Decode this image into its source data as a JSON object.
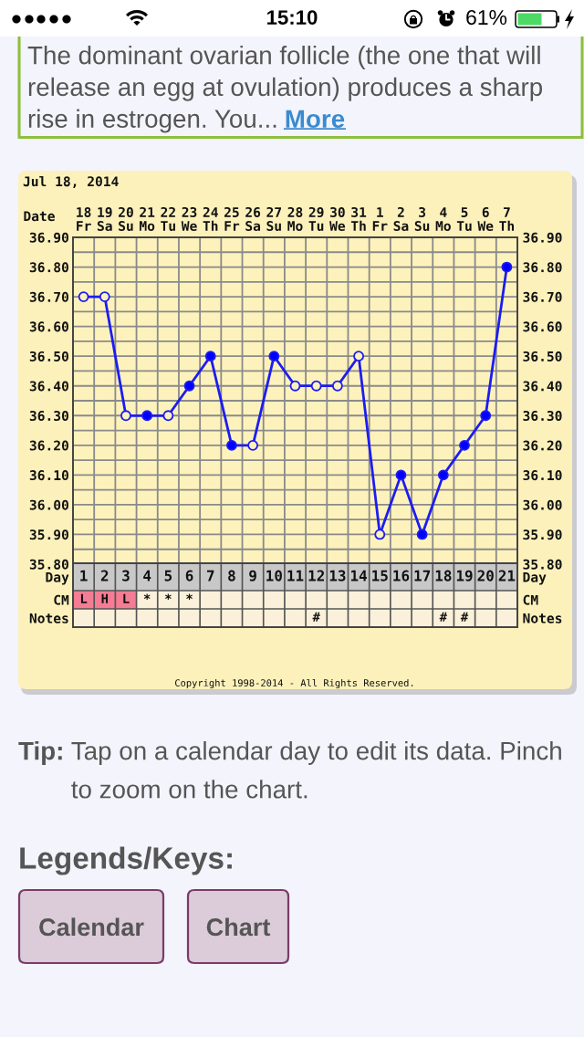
{
  "chart_data": [
    {
      "type": "other",
      "annotations": [
        "15:10",
        "61%",
        "The dominant ovarian follicle (the one that will release an egg at ovulation) produces a sharp",
        "rise in estrogen. You...",
        "More"
      ]
    },
    {
      "type": "line",
      "title": "Jul 18, 2014",
      "xlabel": "Date",
      "categories": [
        "18\nFr",
        "19\nSa",
        "20\nSu",
        "21\nMo",
        "22\nTu",
        "23\nWe",
        "24\nTh",
        "25\nFr",
        "26\nSa",
        "27\nSu",
        "28\nMo",
        "29\nTu",
        "30\nWe",
        "31\nTh",
        "1\nFr",
        "2\nSa",
        "3\nSu",
        "4\nMo",
        "5\nTu",
        "6\nWe",
        "7\nTh"
      ],
      "series": [
        {
          "color": "#1c1cf2",
          "values": [
            36.7,
            36.7,
            36.3,
            36.3,
            36.3,
            36.4,
            36.5,
            36.2,
            36.2,
            36.5,
            36.4,
            36.4,
            36.4,
            36.5,
            35.9,
            36.1,
            35.9,
            36.1,
            36.2,
            36.3,
            36.8
          ],
          "colors": [
            "#fdf2bc",
            "#fdf2bc",
            "#fdf2bc",
            "#0000ff",
            "#fdf2bc",
            "#0000ff",
            "#0000ff",
            "#0000ff",
            "#fdf2bc",
            "#0000ff",
            "#fdf2bc",
            "#fdf2bc",
            "#fdf2bc",
            "#fdf2bc",
            "#fdf2bc",
            "#0000ff",
            "#0000ff",
            "#0000ff",
            "#0000ff",
            "#0000ff",
            "#0000ff"
          ]
        }
      ],
      "ylim": [
        35.8,
        36.9
      ],
      "yticks": [
        {
          "value": 35.8,
          "label": "35.80"
        },
        {
          "value": 35.85,
          "label": null
        },
        {
          "value": 35.9,
          "label": "35.90"
        },
        {
          "value": 35.95,
          "label": null
        },
        {
          "value": 36.0,
          "label": "36.00"
        },
        {
          "value": 36.05,
          "label": null
        },
        {
          "value": 36.1,
          "label": "36.10"
        },
        {
          "value": 36.15,
          "label": null
        },
        {
          "value": 36.2,
          "label": "36.20"
        },
        {
          "value": 36.25,
          "label": null
        },
        {
          "value": 36.3,
          "label": "36.30"
        },
        {
          "value": 36.35,
          "label": null
        },
        {
          "value": 36.4,
          "label": "36.40"
        },
        {
          "value": 36.45,
          "label": null
        },
        {
          "value": 36.5,
          "label": "36.50"
        },
        {
          "value": 36.55,
          "label": null
        },
        {
          "value": 36.6,
          "label": "36.60"
        },
        {
          "value": 36.65,
          "label": null
        },
        {
          "value": 36.7,
          "label": "36.70"
        },
        {
          "value": 36.75,
          "label": null
        },
        {
          "value": 36.8,
          "label": "36.80"
        },
        {
          "value": 36.85,
          "label": null
        },
        {
          "value": 36.9,
          "label": "36.90"
        }
      ],
      "y2lim": [
        35.8,
        36.9
      ],
      "y2ticks": [
        {
          "value": 35.8,
          "label": "35.80"
        },
        {
          "value": 35.85,
          "label": null
        },
        {
          "value": 35.9,
          "label": "35.90"
        },
        {
          "value": 35.95,
          "label": null
        },
        {
          "value": 36.0,
          "label": "36.00"
        },
        {
          "value": 36.05,
          "label": null
        },
        {
          "value": 36.1,
          "label": "36.10"
        },
        {
          "value": 36.15,
          "label": null
        },
        {
          "value": 36.2,
          "label": "36.20"
        },
        {
          "value": 36.25,
          "label": null
        },
        {
          "value": 36.3,
          "label": "36.30"
        },
        {
          "value": 36.35,
          "label": null
        },
        {
          "value": 36.4,
          "label": "36.40"
        },
        {
          "value": 36.45,
          "label": null
        },
        {
          "value": 36.5,
          "label": "36.50"
        },
        {
          "value": 36.55,
          "label": null
        },
        {
          "value": 36.6,
          "label": "36.60"
        },
        {
          "value": 36.65,
          "label": null
        },
        {
          "value": 36.7,
          "label": "36.70"
        },
        {
          "value": 36.75,
          "label": null
        },
        {
          "value": 36.8,
          "label": "36.80"
        },
        {
          "value": 36.85,
          "label": null
        },
        {
          "value": 36.9,
          "label": "36.90"
        }
      ],
      "grid": true,
      "marker": "circle",
      "line_style": "solid"
    },
    {
      "type": "heatmap",
      "categories": [
        "1",
        "2",
        "3",
        "4",
        "5",
        "6",
        "7",
        "8",
        "9",
        "10",
        "11",
        "12",
        "13",
        "14",
        "15",
        "16",
        "17",
        "18",
        "19",
        "20",
        "21"
      ],
      "y_categories": [
        "Day",
        "CM",
        "Notes"
      ],
      "y2_categories": [
        "Day",
        "CM",
        "Notes"
      ],
      "cells": [
        [
          null,
          null,
          null,
          null,
          null,
          null,
          null,
          null,
          null,
          null,
          null,
          null,
          null,
          null,
          null,
          null,
          null,
          null,
          null,
          null,
          null
        ],
        [
          null,
          null,
          null,
          null,
          null,
          null,
          null,
          null,
          null,
          null,
          null,
          null,
          null,
          null,
          null,
          null,
          null,
          null,
          null,
          null,
          null
        ],
        [
          null,
          null,
          null,
          null,
          null,
          null,
          null,
          null,
          null,
          null,
          null,
          null,
          null,
          null,
          null,
          null,
          null,
          null,
          null,
          null,
          null
        ]
      ],
      "cell_labels": [
        [
          null,
          null,
          null,
          null,
          null,
          null,
          null,
          null,
          null,
          null,
          null,
          null,
          null,
          null,
          null,
          null,
          null,
          null,
          null,
          null,
          null
        ],
        [
          "L",
          "H",
          "L",
          "*",
          "*",
          "*",
          null,
          null,
          null,
          null,
          null,
          null,
          null,
          null,
          null,
          null,
          null,
          null,
          null,
          null,
          null
        ],
        [
          null,
          null,
          null,
          null,
          null,
          null,
          null,
          null,
          null,
          null,
          null,
          "#",
          null,
          null,
          null,
          null,
          null,
          "#",
          "#",
          null,
          null
        ]
      ],
      "colors": [
        [
          "#c8c8c8",
          "#c8c8c8",
          "#c8c8c8",
          "#c8c8c8",
          "#c8c8c8",
          "#c8c8c8",
          "#c8c8c8",
          "#c8c8c8",
          "#c8c8c8",
          "#c8c8c8",
          "#c8c8c8",
          "#c8c8c8",
          "#c8c8c8",
          "#c8c8c8",
          "#c8c8c8",
          "#c8c8c8",
          "#c8c8c8",
          "#c8c8c8",
          "#c8c8c8",
          "#c8c8c8",
          "#c8c8c8"
        ],
        [
          "#f47c93",
          "#f47c93",
          "#f47c93",
          "#fbf1da",
          "#fbf1da",
          "#fbf1da",
          "#fbf1da",
          "#fbf1da",
          "#fbf1da",
          "#fbf1da",
          "#fbf1da",
          "#fbf1da",
          "#fbf1da",
          "#fbf1da",
          "#fbf1da",
          "#fbf1da",
          "#fbf1da",
          "#fbf1da",
          "#fbf1da",
          "#fbf1da",
          "#fbf1da"
        ],
        [
          "#fbf1da",
          "#fbf1da",
          "#fbf1da",
          "#fbf1da",
          "#fbf1da",
          "#fbf1da",
          "#fbf1da",
          "#fbf1da",
          "#fbf1da",
          "#fbf1da",
          "#fbf1da",
          "#fbf1da",
          "#fbf1da",
          "#fbf1da",
          "#fbf1da",
          "#fbf1da",
          "#fbf1da",
          "#fbf1da",
          "#fbf1da",
          "#fbf1da",
          "#fbf1da"
        ]
      ],
      "grid": true,
      "annotations": [
        "Copyright 1998-2014 - All Rights Reserved."
      ]
    },
    {
      "type": "other",
      "annotations": [
        "Tip:",
        "Tap on a calendar day to edit its data. Pinch to zoom on the chart.",
        "Legends/Keys:",
        "Calendar",
        "Chart"
      ]
    }
  ]
}
